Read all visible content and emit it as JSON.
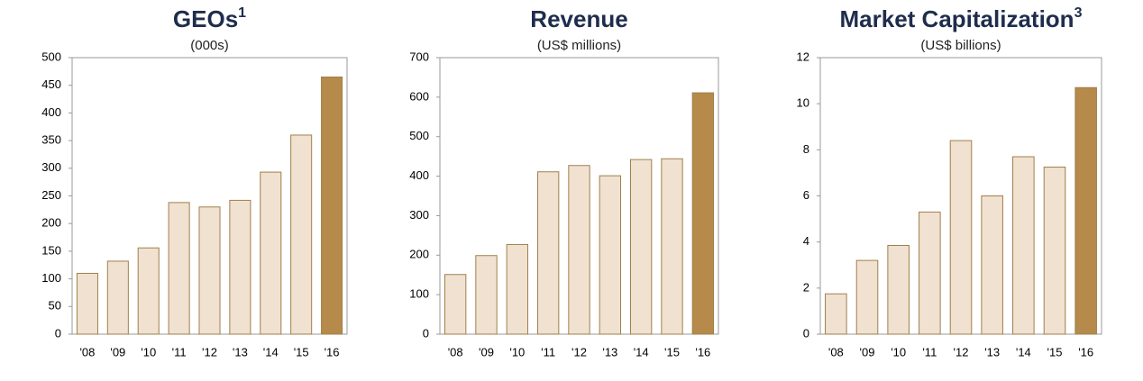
{
  "chart_data": [
    {
      "type": "bar",
      "title": "GEOs",
      "title_note": "1",
      "subtitle": "(000s)",
      "categories": [
        "'08",
        "'09",
        "'10",
        "'11",
        "'12",
        "'13",
        "'14",
        "'15",
        "'16"
      ],
      "values": [
        110,
        132,
        156,
        238,
        230,
        242,
        293,
        360,
        465
      ],
      "colors": [
        "#f0e1d1",
        "#f0e1d1",
        "#f0e1d1",
        "#f0e1d1",
        "#f0e1d1",
        "#f0e1d1",
        "#f0e1d1",
        "#f0e1d1",
        "#b58a4a"
      ],
      "ylim": [
        0,
        500
      ],
      "yticks": [
        0,
        50,
        100,
        150,
        200,
        250,
        300,
        350,
        400,
        450,
        500
      ]
    },
    {
      "type": "bar",
      "title": "Revenue",
      "subtitle": "(US$ millions)",
      "categories": [
        "'08",
        "'09",
        "'10",
        "'11",
        "'12",
        "'13",
        "'14",
        "'15",
        "'16"
      ],
      "values": [
        151,
        199,
        227,
        411,
        427,
        401,
        442,
        444,
        611
      ],
      "colors": [
        "#f0e1d1",
        "#f0e1d1",
        "#f0e1d1",
        "#f0e1d1",
        "#f0e1d1",
        "#f0e1d1",
        "#f0e1d1",
        "#f0e1d1",
        "#b58a4a"
      ],
      "ylim": [
        0,
        700
      ],
      "yticks": [
        0,
        100,
        200,
        300,
        400,
        500,
        600,
        700
      ]
    },
    {
      "type": "bar",
      "title": "Market Capitalization",
      "title_note": "3",
      "subtitle": "(US$ billions)",
      "categories": [
        "'08",
        "'09",
        "'10",
        "'11",
        "'12",
        "'13",
        "'14",
        "'15",
        "'16"
      ],
      "values": [
        1.75,
        3.2,
        3.85,
        5.3,
        8.4,
        6.0,
        7.7,
        7.25,
        10.7
      ],
      "colors": [
        "#f0e1d1",
        "#f0e1d1",
        "#f0e1d1",
        "#f0e1d1",
        "#f0e1d1",
        "#f0e1d1",
        "#f0e1d1",
        "#f0e1d1",
        "#b58a4a"
      ],
      "ylim": [
        0,
        12
      ],
      "yticks": [
        0,
        2,
        4,
        6,
        8,
        10,
        12
      ]
    }
  ]
}
